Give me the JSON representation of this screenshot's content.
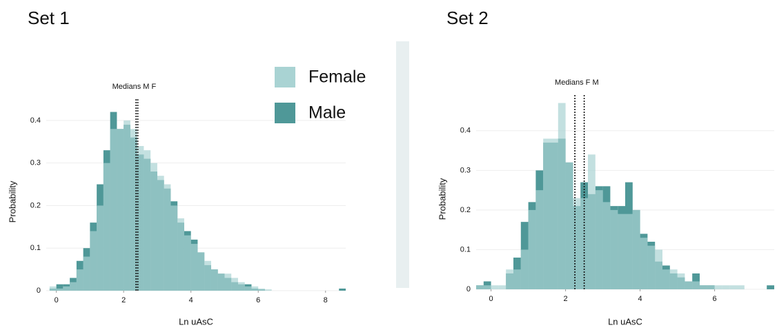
{
  "chart_data": [
    {
      "type": "histogram",
      "title": "Set 1",
      "x_label": "Ln uAsC",
      "y_label": "Probability",
      "legend": true,
      "grid": true,
      "xlim": [
        -0.3,
        8.6
      ],
      "xticks": [
        0,
        2,
        4,
        6,
        8
      ],
      "ylim": [
        0,
        0.45
      ],
      "yticks": [
        0,
        0.1,
        0.2,
        0.3,
        0.4
      ],
      "bins": [
        -0.2,
        0,
        0.2,
        0.4,
        0.6,
        0.8,
        1.0,
        1.2,
        1.4,
        1.6,
        1.8,
        2.0,
        2.2,
        2.4,
        2.6,
        2.8,
        3.0,
        3.2,
        3.4,
        3.6,
        3.8,
        4.0,
        4.2,
        4.4,
        4.6,
        4.8,
        5.0,
        5.2,
        5.4,
        5.6,
        5.8,
        6.0,
        6.2,
        6.4,
        6.6,
        6.8,
        7.0,
        7.2,
        7.4,
        7.6,
        7.8,
        8.0,
        8.2,
        8.4,
        8.6
      ],
      "series": [
        {
          "name": "Female",
          "color": "#a9d3d3",
          "values": [
            0.01,
            0.005,
            0.01,
            0.02,
            0.05,
            0.08,
            0.14,
            0.2,
            0.3,
            0.38,
            0.38,
            0.4,
            0.38,
            0.34,
            0.33,
            0.3,
            0.27,
            0.25,
            0.2,
            0.17,
            0.13,
            0.11,
            0.09,
            0.07,
            0.05,
            0.04,
            0.04,
            0.03,
            0.02,
            0.01,
            0.01,
            0.005,
            0.003,
            0,
            0,
            0,
            0,
            0,
            0,
            0,
            0,
            0,
            0,
            0
          ]
        },
        {
          "name": "Male",
          "color": "#4f9898",
          "values": [
            0.005,
            0.015,
            0.015,
            0.03,
            0.07,
            0.1,
            0.16,
            0.25,
            0.33,
            0.42,
            0.38,
            0.39,
            0.36,
            0.32,
            0.31,
            0.28,
            0.26,
            0.24,
            0.21,
            0.16,
            0.14,
            0.12,
            0.09,
            0.06,
            0.05,
            0.04,
            0.03,
            0.02,
            0.015,
            0.015,
            0.005,
            0.003,
            0,
            0,
            0,
            0,
            0,
            0,
            0,
            0,
            0,
            0,
            0,
            0.005
          ]
        }
      ],
      "median_label": "Medians M F",
      "medians": [
        2.37,
        2.42
      ]
    },
    {
      "type": "histogram",
      "title": "Set 2",
      "x_label": "Ln uAsC",
      "y_label": "Probability",
      "legend": false,
      "grid": true,
      "xlim": [
        -0.4,
        7.6
      ],
      "xticks": [
        0,
        2,
        4,
        6
      ],
      "ylim": [
        0,
        0.49
      ],
      "yticks": [
        0,
        0.1,
        0.2,
        0.3,
        0.4
      ],
      "bins": [
        -0.4,
        -0.2,
        0,
        0.2,
        0.4,
        0.6,
        0.8,
        1.0,
        1.2,
        1.4,
        1.6,
        1.8,
        2.0,
        2.2,
        2.4,
        2.6,
        2.8,
        3.0,
        3.2,
        3.4,
        3.6,
        3.8,
        4.0,
        4.2,
        4.4,
        4.6,
        4.8,
        5.0,
        5.2,
        5.4,
        5.6,
        5.8,
        6.0,
        6.2,
        6.4,
        6.6,
        6.8,
        7.0,
        7.2,
        7.4,
        7.6
      ],
      "series": [
        {
          "name": "Female",
          "color": "#a9d3d3",
          "values": [
            0.01,
            0.01,
            0.01,
            0.01,
            0.05,
            0.05,
            0.1,
            0.2,
            0.25,
            0.38,
            0.38,
            0.47,
            0.32,
            0.23,
            0.23,
            0.34,
            0.25,
            0.22,
            0.2,
            0.19,
            0.19,
            0.2,
            0.13,
            0.11,
            0.1,
            0.05,
            0.05,
            0.04,
            0.02,
            0.02,
            0.01,
            0.01,
            0.01,
            0.01,
            0.01,
            0.01,
            0,
            0,
            0,
            0
          ]
        },
        {
          "name": "Male",
          "color": "#4f9898",
          "values": [
            0.01,
            0.02,
            0,
            0,
            0.04,
            0.08,
            0.17,
            0.22,
            0.3,
            0.37,
            0.37,
            0.38,
            0.32,
            0.21,
            0.27,
            0.24,
            0.26,
            0.26,
            0.21,
            0.21,
            0.27,
            0.2,
            0.14,
            0.12,
            0.07,
            0.06,
            0.04,
            0.03,
            0.02,
            0.04,
            0.01,
            0.01,
            0,
            0,
            0,
            0,
            0,
            0,
            0,
            0.01
          ]
        }
      ],
      "median_label": "Medians F  M",
      "medians": [
        2.25,
        2.5
      ]
    }
  ]
}
